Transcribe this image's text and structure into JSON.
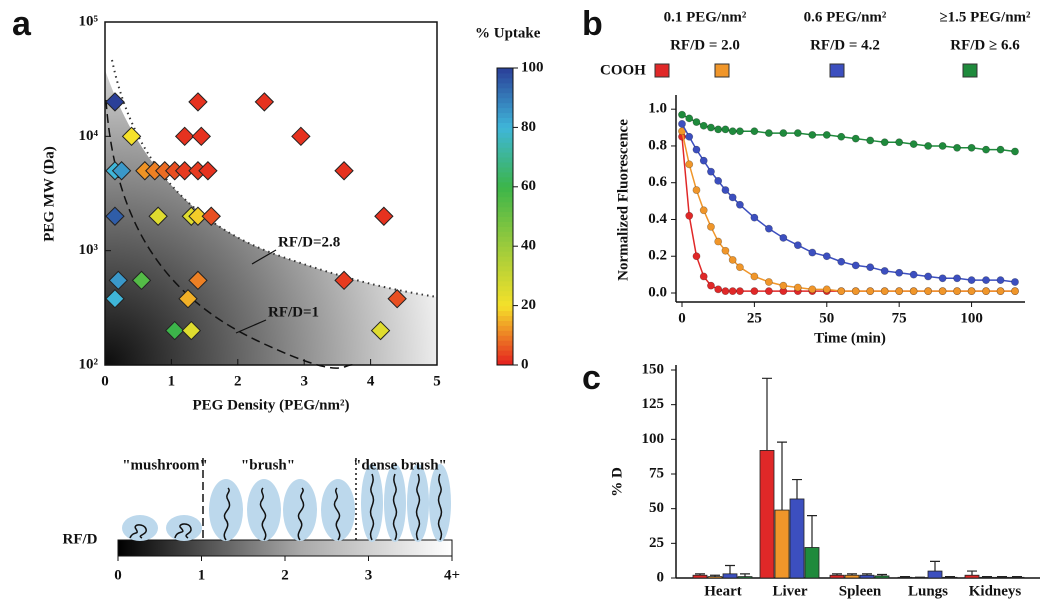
{
  "chart_data": [
    {
      "type": "scatter",
      "panel": "a",
      "x_label": "PEG Density (PEG/nm²)",
      "y_label": "PEG MW (Da)",
      "xlim": [
        0,
        5
      ],
      "xticks": [
        0,
        1,
        2,
        3,
        4,
        5
      ],
      "ylim": [
        100,
        100000
      ],
      "log_y": true,
      "yticks": [
        {
          "value": 100,
          "label": "10²"
        },
        {
          "value": 1000,
          "label": "10³"
        },
        {
          "value": 10000,
          "label": "10⁴"
        },
        {
          "value": 100000,
          "label": "10⁵"
        }
      ],
      "x": [
        0.15,
        0.4,
        0.15,
        0.25,
        0.6,
        0.75,
        0.9,
        1.05,
        1.2,
        1.4,
        1.55,
        1.2,
        1.45,
        1.4,
        2.4,
        2.95,
        3.6,
        4.2,
        0.15,
        0.8,
        1.3,
        1.4,
        1.6,
        0.2,
        0.55,
        1.4,
        3.6,
        4.4,
        0.15,
        1.25,
        1.05,
        1.3,
        4.15
      ],
      "y": [
        20000,
        10000,
        5000,
        5000,
        5000,
        5000,
        5000,
        5000,
        5000,
        5000,
        5000,
        10000,
        10000,
        20000,
        20000,
        10000,
        5000,
        2000,
        2000,
        2000,
        2000,
        2000,
        2000,
        550,
        550,
        550,
        550,
        380,
        380,
        380,
        200,
        200,
        200
      ],
      "uptake": [
        100,
        20,
        80,
        85,
        12,
        10,
        8,
        5,
        3,
        3,
        2,
        2,
        2,
        2,
        2,
        2,
        2,
        2,
        95,
        25,
        25,
        18,
        5,
        85,
        55,
        10,
        3,
        5,
        80,
        15,
        60,
        25,
        25
      ],
      "annotations": [
        "RF/D=2.8",
        "RF/D=1"
      ],
      "colorbar": {
        "title": "% Uptake",
        "lim": [
          0,
          100
        ],
        "ticks": [
          0,
          20,
          40,
          60,
          80,
          100
        ],
        "colormap": [
          "#e41e1e",
          "#f5e12a",
          "#9ccb3c",
          "#3cb54a",
          "#3fb6d9",
          "#2a3f98"
        ]
      }
    },
    {
      "type": "line",
      "panel": "b",
      "x_label": "Time (min)",
      "y_label": "Normalized Fluorescence",
      "xlim": [
        0,
        115
      ],
      "xticks": [
        0,
        25,
        50,
        75,
        100
      ],
      "ylim": [
        0,
        1.05
      ],
      "yticks": [
        {
          "value": 0,
          "label": "0.0"
        },
        0.2,
        0.4,
        0.6,
        0.8,
        {
          "value": 1,
          "label": "1.0"
        }
      ],
      "x": [
        0,
        2.5,
        5,
        7.5,
        10,
        12.5,
        15,
        17.5,
        20,
        25,
        30,
        35,
        40,
        45,
        50,
        55,
        60,
        65,
        70,
        75,
        80,
        85,
        90,
        95,
        100,
        105,
        110,
        115
      ],
      "series": [
        {
          "name": "COOH",
          "color": "#e02828",
          "values": [
            0.85,
            0.42,
            0.2,
            0.09,
            0.04,
            0.02,
            0.01,
            0.01,
            0.01,
            0.01,
            0.01,
            0.01,
            0.01,
            0.01,
            0.01,
            0.01,
            0.01,
            0.01,
            0.01,
            0.01,
            0.01,
            0.01,
            0.01,
            0.01,
            0.01,
            0.01,
            0.01,
            0.01
          ]
        },
        {
          "name": "0.1 PEG/nm²",
          "ratio": "RF/D = 2.0",
          "color": "#f0962a",
          "values": [
            0.88,
            0.7,
            0.56,
            0.45,
            0.36,
            0.28,
            0.23,
            0.18,
            0.14,
            0.09,
            0.06,
            0.04,
            0.03,
            0.02,
            0.02,
            0.01,
            0.01,
            0.01,
            0.01,
            0.01,
            0.01,
            0.01,
            0.01,
            0.01,
            0.01,
            0.01,
            0.01,
            0.01
          ]
        },
        {
          "name": "0.6 PEG/nm²",
          "ratio": "RF/D = 4.2",
          "color": "#3c4fbf",
          "values": [
            0.92,
            0.85,
            0.78,
            0.72,
            0.66,
            0.61,
            0.56,
            0.52,
            0.48,
            0.41,
            0.35,
            0.3,
            0.26,
            0.22,
            0.2,
            0.17,
            0.15,
            0.14,
            0.12,
            0.11,
            0.1,
            0.09,
            0.08,
            0.08,
            0.07,
            0.07,
            0.07,
            0.06
          ]
        },
        {
          "name": "≥1.5 PEG/nm²",
          "ratio": "RF/D ≥ 6.6",
          "color": "#1f8a3c",
          "values": [
            0.97,
            0.95,
            0.93,
            0.91,
            0.9,
            0.89,
            0.89,
            0.88,
            0.88,
            0.88,
            0.87,
            0.87,
            0.87,
            0.86,
            0.86,
            0.85,
            0.84,
            0.83,
            0.82,
            0.82,
            0.81,
            0.8,
            0.8,
            0.79,
            0.79,
            0.78,
            0.78,
            0.77
          ]
        }
      ]
    },
    {
      "type": "bar",
      "panel": "c",
      "y_label": "% D",
      "categories": [
        "Heart",
        "Liver",
        "Spleen",
        "Lungs",
        "Kidneys"
      ],
      "ylim": [
        0,
        150
      ],
      "yticks": [
        0,
        25,
        50,
        75,
        100,
        125,
        150
      ],
      "series": [
        {
          "color": "#e02828",
          "values": [
            2,
            92,
            2,
            0.5,
            2
          ],
          "errors": [
            1,
            52,
            1,
            0.5,
            3
          ]
        },
        {
          "color": "#f0962a",
          "values": [
            1,
            49,
            2,
            0.3,
            0.5
          ],
          "errors": [
            1,
            49,
            1,
            0.3,
            0.5
          ]
        },
        {
          "color": "#3c4fbf",
          "values": [
            3,
            57,
            2,
            5,
            0.5
          ],
          "errors": [
            6,
            14,
            1,
            7,
            0.5
          ]
        },
        {
          "color": "#1f8a3c",
          "values": [
            1,
            22,
            1.5,
            0.5,
            0.5
          ],
          "errors": [
            2,
            23,
            1,
            0.5,
            0.5
          ]
        }
      ]
    }
  ],
  "schematic": {
    "regimes": [
      "\"mushroom\"",
      "\"brush\"",
      "\"dense brush\""
    ],
    "axis_label": "RF/D",
    "ticks": [
      0,
      1,
      2,
      3,
      {
        "value": 4,
        "label": "4+"
      }
    ]
  }
}
